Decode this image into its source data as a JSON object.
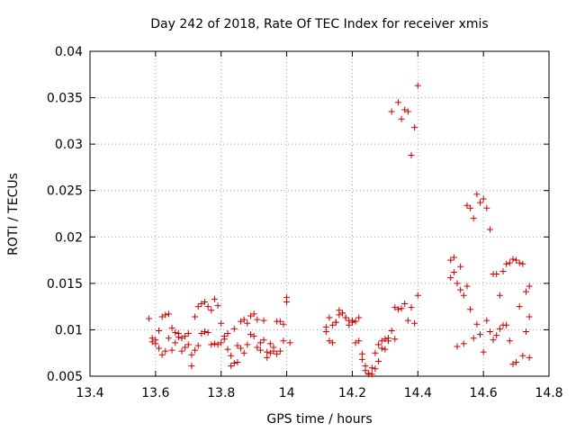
{
  "chart_data": {
    "type": "scatter",
    "title": "Day 242 of 2018, Rate Of TEC Index for receiver xmis",
    "xlabel": "GPS time / hours",
    "ylabel": "ROTI / TECUs",
    "xlim": [
      13.4,
      14.8
    ],
    "ylim": [
      0.005,
      0.04
    ],
    "xticks": [
      "13.4",
      "13.6",
      "13.8",
      "14",
      "14.2",
      "14.4",
      "14.6",
      "14.8"
    ],
    "yticks": [
      "0.005",
      "0.01",
      "0.015",
      "0.02",
      "0.025",
      "0.03",
      "0.035",
      "0.04"
    ],
    "grid": true,
    "marker": "+",
    "color": "#cc0000",
    "series": [
      {
        "name": "xmis",
        "points": [
          [
            13.58,
            0.0112
          ],
          [
            13.59,
            0.0091
          ],
          [
            13.59,
            0.0087
          ],
          [
            13.6,
            0.0089
          ],
          [
            13.6,
            0.0085
          ],
          [
            13.61,
            0.0099
          ],
          [
            13.61,
            0.008
          ],
          [
            13.62,
            0.0073
          ],
          [
            13.62,
            0.0114
          ],
          [
            13.63,
            0.0116
          ],
          [
            13.63,
            0.0077
          ],
          [
            13.64,
            0.0117
          ],
          [
            13.64,
            0.0091
          ],
          [
            13.65,
            0.0078
          ],
          [
            13.65,
            0.0102
          ],
          [
            13.66,
            0.0097
          ],
          [
            13.66,
            0.0086
          ],
          [
            13.67,
            0.0092
          ],
          [
            13.67,
            0.0096
          ],
          [
            13.68,
            0.0077
          ],
          [
            13.68,
            0.0091
          ],
          [
            13.69,
            0.0093
          ],
          [
            13.69,
            0.0081
          ],
          [
            13.7,
            0.0084
          ],
          [
            13.7,
            0.0096
          ],
          [
            13.71,
            0.0073
          ],
          [
            13.71,
            0.0061
          ],
          [
            13.72,
            0.0078
          ],
          [
            13.72,
            0.0114
          ],
          [
            13.73,
            0.0083
          ],
          [
            13.73,
            0.0125
          ],
          [
            13.74,
            0.0096
          ],
          [
            13.74,
            0.0128
          ],
          [
            13.75,
            0.013
          ],
          [
            13.75,
            0.0098
          ],
          [
            13.76,
            0.0125
          ],
          [
            13.76,
            0.0097
          ],
          [
            13.77,
            0.0084
          ],
          [
            13.77,
            0.0121
          ],
          [
            13.78,
            0.0133
          ],
          [
            13.78,
            0.0085
          ],
          [
            13.79,
            0.0126
          ],
          [
            13.79,
            0.0084
          ],
          [
            13.8,
            0.0107
          ],
          [
            13.8,
            0.0086
          ],
          [
            13.81,
            0.0093
          ],
          [
            13.81,
            0.009
          ],
          [
            13.82,
            0.0079
          ],
          [
            13.82,
            0.0096
          ],
          [
            13.83,
            0.0072
          ],
          [
            13.83,
            0.0061
          ],
          [
            13.84,
            0.0064
          ],
          [
            13.84,
            0.0101
          ],
          [
            13.85,
            0.0065
          ],
          [
            13.85,
            0.0083
          ],
          [
            13.86,
            0.0109
          ],
          [
            13.86,
            0.008
          ],
          [
            13.87,
            0.0111
          ],
          [
            13.87,
            0.0075
          ],
          [
            13.88,
            0.0107
          ],
          [
            13.88,
            0.0084
          ],
          [
            13.89,
            0.0115
          ],
          [
            13.89,
            0.0095
          ],
          [
            13.9,
            0.0117
          ],
          [
            13.9,
            0.0093
          ],
          [
            13.91,
            0.0111
          ],
          [
            13.91,
            0.0081
          ],
          [
            13.92,
            0.0086
          ],
          [
            13.92,
            0.0078
          ],
          [
            13.93,
            0.011
          ],
          [
            13.93,
            0.0089
          ],
          [
            13.94,
            0.0076
          ],
          [
            13.94,
            0.007
          ],
          [
            13.95,
            0.0075
          ],
          [
            13.95,
            0.0085
          ],
          [
            13.96,
            0.0081
          ],
          [
            13.96,
            0.0077
          ],
          [
            13.97,
            0.0074
          ],
          [
            13.97,
            0.0109
          ],
          [
            13.98,
            0.0109
          ],
          [
            13.98,
            0.0077
          ],
          [
            13.99,
            0.0088
          ],
          [
            13.99,
            0.0106
          ],
          [
            14.0,
            0.013
          ],
          [
            14.0,
            0.0135
          ],
          [
            14.01,
            0.0086
          ],
          [
            14.12,
            0.0103
          ],
          [
            14.12,
            0.0098
          ],
          [
            14.13,
            0.0113
          ],
          [
            14.13,
            0.0088
          ],
          [
            14.14,
            0.0105
          ],
          [
            14.14,
            0.0086
          ],
          [
            14.15,
            0.0108
          ],
          [
            14.15,
            0.0108
          ],
          [
            14.16,
            0.0121
          ],
          [
            14.16,
            0.0116
          ],
          [
            14.17,
            0.0118
          ],
          [
            14.17,
            0.0118
          ],
          [
            14.18,
            0.0113
          ],
          [
            14.18,
            0.0113
          ],
          [
            14.19,
            0.011
          ],
          [
            14.19,
            0.0105
          ],
          [
            14.2,
            0.0108
          ],
          [
            14.2,
            0.011
          ],
          [
            14.21,
            0.0086
          ],
          [
            14.21,
            0.0109
          ],
          [
            14.22,
            0.0088
          ],
          [
            14.22,
            0.0113
          ],
          [
            14.23,
            0.0074
          ],
          [
            14.23,
            0.0068
          ],
          [
            14.24,
            0.0056
          ],
          [
            14.24,
            0.0061
          ],
          [
            14.25,
            0.0052
          ],
          [
            14.25,
            0.0053
          ],
          [
            14.26,
            0.0059
          ],
          [
            14.26,
            0.0052
          ],
          [
            14.27,
            0.0058
          ],
          [
            14.27,
            0.0075
          ],
          [
            14.28,
            0.0066
          ],
          [
            14.28,
            0.0084
          ],
          [
            14.29,
            0.008
          ],
          [
            14.29,
            0.0088
          ],
          [
            14.3,
            0.009
          ],
          [
            14.3,
            0.0079
          ],
          [
            14.31,
            0.0088
          ],
          [
            14.31,
            0.0091
          ],
          [
            14.32,
            0.0099
          ],
          [
            14.32,
            0.0335
          ],
          [
            14.33,
            0.0124
          ],
          [
            14.33,
            0.009
          ],
          [
            14.34,
            0.0345
          ],
          [
            14.34,
            0.0122
          ],
          [
            14.35,
            0.0327
          ],
          [
            14.35,
            0.0123
          ],
          [
            14.36,
            0.0337
          ],
          [
            14.36,
            0.0128
          ],
          [
            14.37,
            0.0335
          ],
          [
            14.37,
            0.011
          ],
          [
            14.38,
            0.0288
          ],
          [
            14.38,
            0.0124
          ],
          [
            14.39,
            0.0318
          ],
          [
            14.39,
            0.0107
          ],
          [
            14.4,
            0.0363
          ],
          [
            14.4,
            0.0137
          ],
          [
            14.5,
            0.0156
          ],
          [
            14.5,
            0.0175
          ],
          [
            14.51,
            0.0162
          ],
          [
            14.51,
            0.0178
          ],
          [
            14.52,
            0.015
          ],
          [
            14.52,
            0.0082
          ],
          [
            14.53,
            0.0143
          ],
          [
            14.53,
            0.0168
          ],
          [
            14.54,
            0.0137
          ],
          [
            14.54,
            0.0085
          ],
          [
            14.55,
            0.0234
          ],
          [
            14.55,
            0.0147
          ],
          [
            14.56,
            0.0231
          ],
          [
            14.56,
            0.0122
          ],
          [
            14.57,
            0.022
          ],
          [
            14.57,
            0.0091
          ],
          [
            14.58,
            0.0246
          ],
          [
            14.58,
            0.0106
          ],
          [
            14.59,
            0.0237
          ],
          [
            14.59,
            0.0095
          ],
          [
            14.6,
            0.0241
          ],
          [
            14.6,
            0.0076
          ],
          [
            14.61,
            0.0231
          ],
          [
            14.61,
            0.011
          ],
          [
            14.62,
            0.0208
          ],
          [
            14.62,
            0.0098
          ],
          [
            14.63,
            0.016
          ],
          [
            14.63,
            0.0089
          ],
          [
            14.64,
            0.016
          ],
          [
            14.64,
            0.0094
          ],
          [
            14.65,
            0.0137
          ],
          [
            14.65,
            0.0101
          ],
          [
            14.66,
            0.0163
          ],
          [
            14.66,
            0.0105
          ],
          [
            14.67,
            0.0171
          ],
          [
            14.67,
            0.0105
          ],
          [
            14.68,
            0.0172
          ],
          [
            14.68,
            0.0088
          ],
          [
            14.69,
            0.0176
          ],
          [
            14.69,
            0.0063
          ],
          [
            14.7,
            0.0175
          ],
          [
            14.7,
            0.0065
          ],
          [
            14.71,
            0.0172
          ],
          [
            14.71,
            0.0125
          ],
          [
            14.72,
            0.0171
          ],
          [
            14.72,
            0.0072
          ],
          [
            14.73,
            0.0141
          ],
          [
            14.73,
            0.0098
          ],
          [
            14.74,
            0.0147
          ],
          [
            14.74,
            0.0114
          ],
          [
            14.74,
            0.007
          ]
        ]
      }
    ]
  }
}
